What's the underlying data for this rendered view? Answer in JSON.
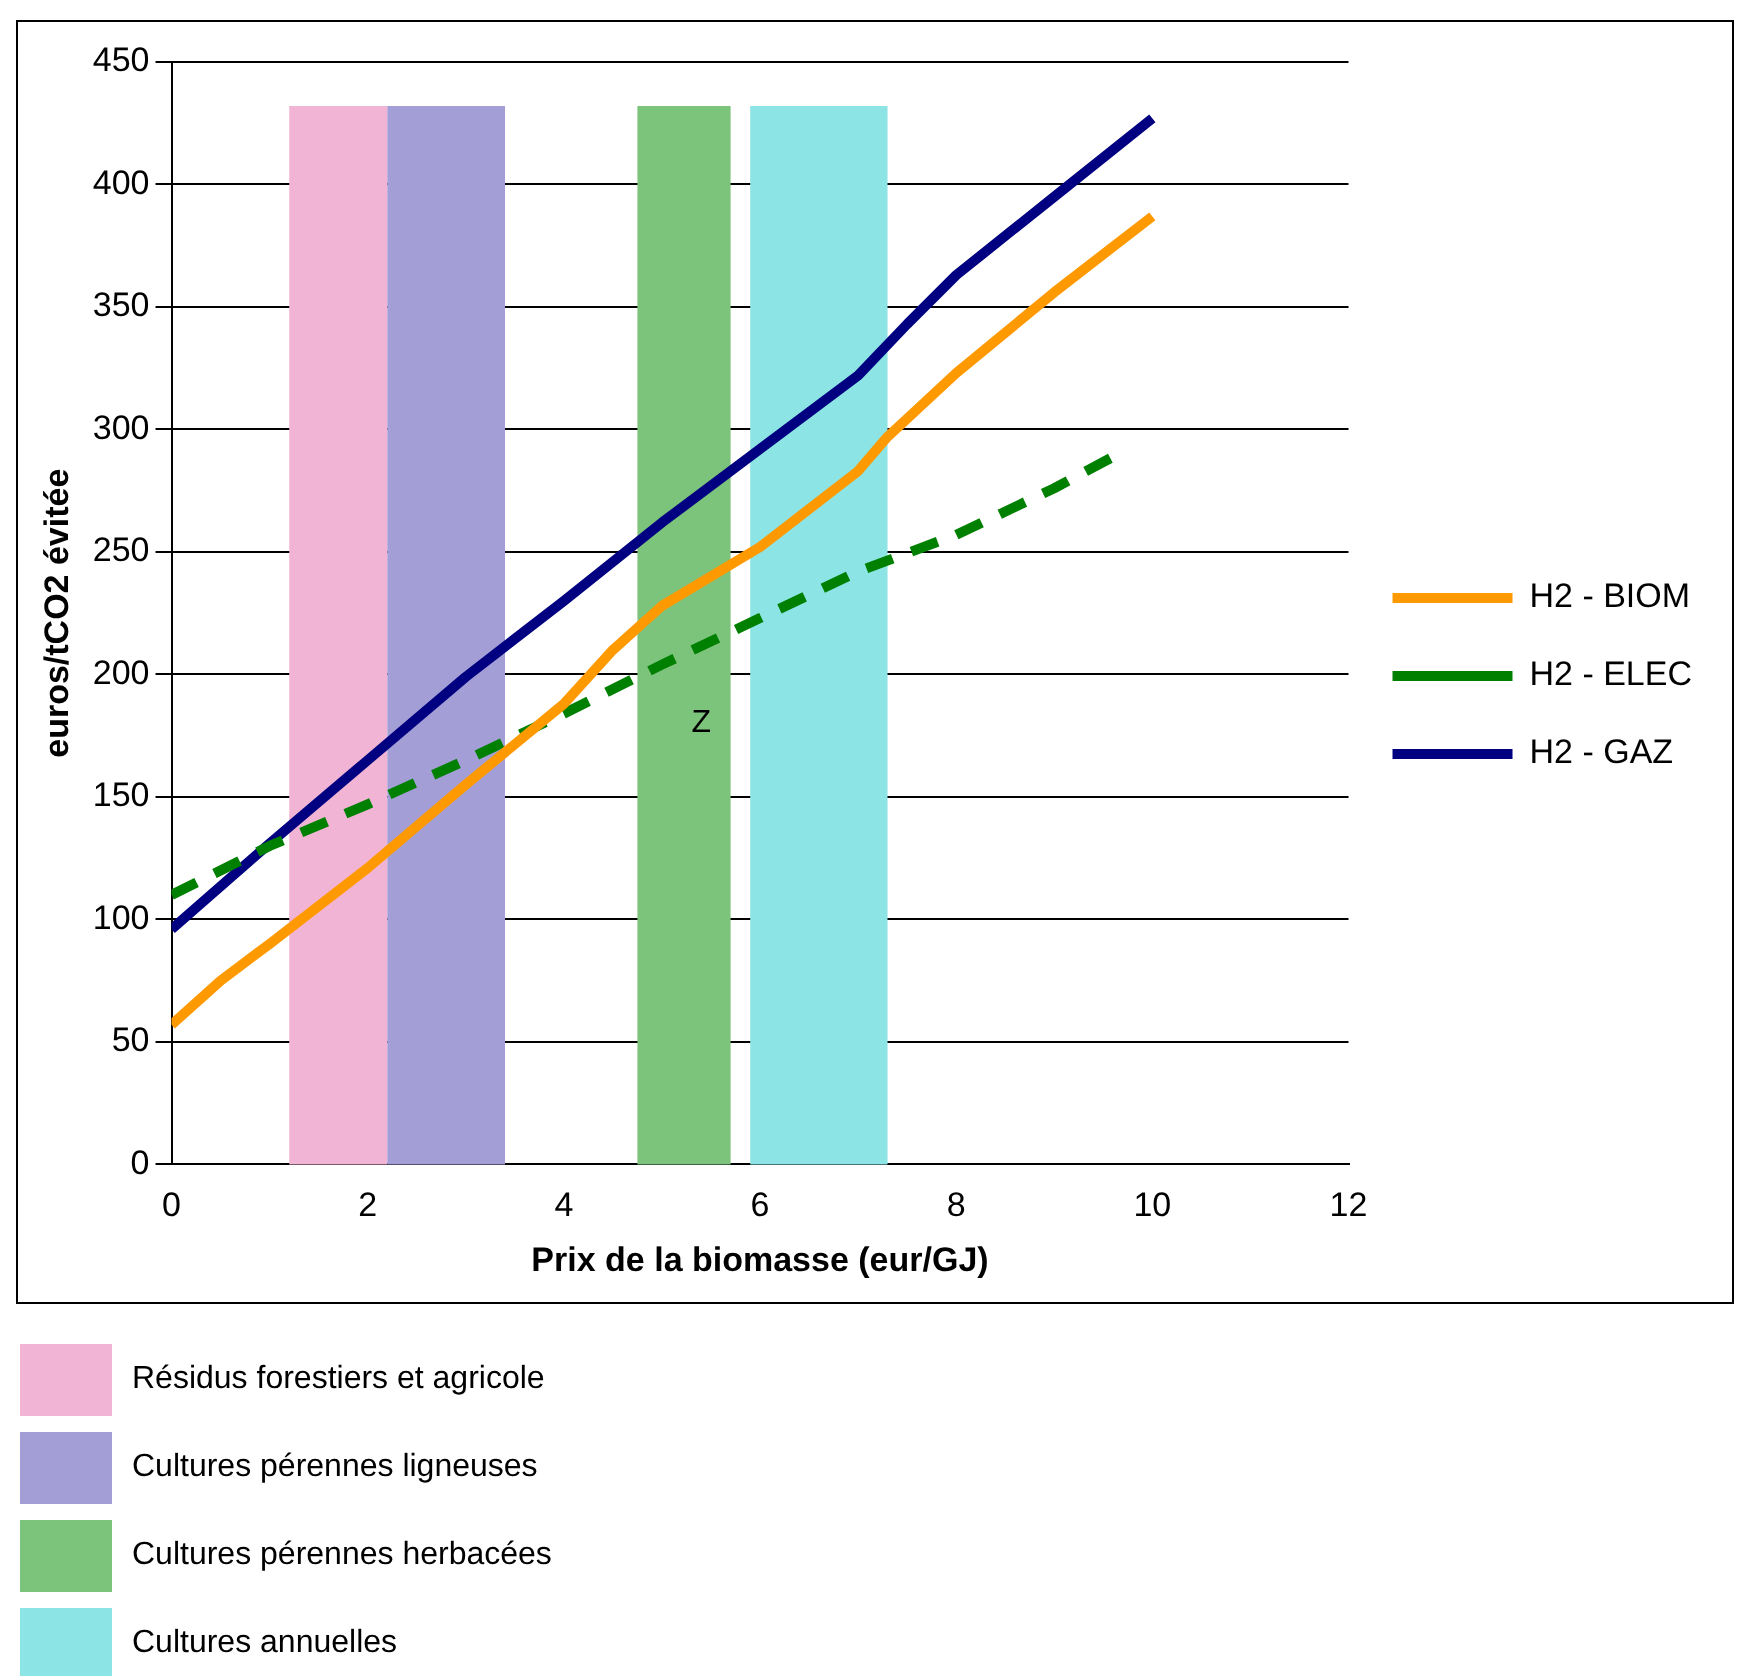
{
  "chart_data": {
    "type": "line",
    "xlabel": "Prix de la biomasse (eur/GJ)",
    "ylabel": "euros/tCO2 évitée",
    "xlim": [
      0,
      12
    ],
    "xticks": [
      0,
      2,
      4,
      6,
      8,
      10,
      12
    ],
    "ylim": [
      0,
      450
    ],
    "yticks": [
      0,
      50,
      100,
      150,
      200,
      250,
      300,
      350,
      400,
      450
    ],
    "grid": "y",
    "legend": "right",
    "marker": "none",
    "series": [
      {
        "name": "H2 - BIOM",
        "color": "#ff9900",
        "line_style": "solid",
        "x": [
          0,
          0.5,
          1,
          2,
          3,
          4,
          4.5,
          5,
          6,
          7,
          7.3,
          8,
          9,
          10
        ],
        "values": [
          57,
          75,
          90,
          121,
          155,
          188,
          210,
          228,
          252,
          283,
          297,
          323,
          356,
          387
        ]
      },
      {
        "name": "H2 - ELEC",
        "color": "#008000",
        "line_style": "dashed",
        "x": [
          0,
          1,
          2,
          3,
          4,
          5,
          6,
          7,
          8,
          9,
          9.7
        ],
        "values": [
          110,
          130,
          147,
          165,
          184,
          204,
          223,
          242,
          257,
          276,
          291
        ]
      },
      {
        "name": "H2 - GAZ",
        "color": "#000080",
        "line_style": "solid",
        "x": [
          0,
          1,
          2,
          3,
          4,
          5,
          6,
          7,
          7.5,
          8,
          9,
          10
        ],
        "values": [
          96,
          131,
          165,
          199,
          230,
          262,
          292,
          322,
          343,
          363,
          395,
          427
        ]
      }
    ],
    "bands": [
      {
        "axis": "x",
        "from": 1.2,
        "to": 2.2,
        "label": "Résidus forestiers et agricole",
        "color": "#f2b4d4"
      },
      {
        "axis": "x",
        "from": 2.2,
        "to": 3.4,
        "label": "Cultures pérennes ligneuses",
        "color": "#a49ed6"
      },
      {
        "axis": "x",
        "from": 4.75,
        "to": 5.7,
        "label": "Cultures pérennes herbacées",
        "color": "#7cc47c"
      },
      {
        "axis": "x",
        "from": 5.9,
        "to": 7.3,
        "label": "Cultures annuelles",
        "color": "#8ce4e4"
      }
    ],
    "annotations": [
      "Z"
    ]
  }
}
